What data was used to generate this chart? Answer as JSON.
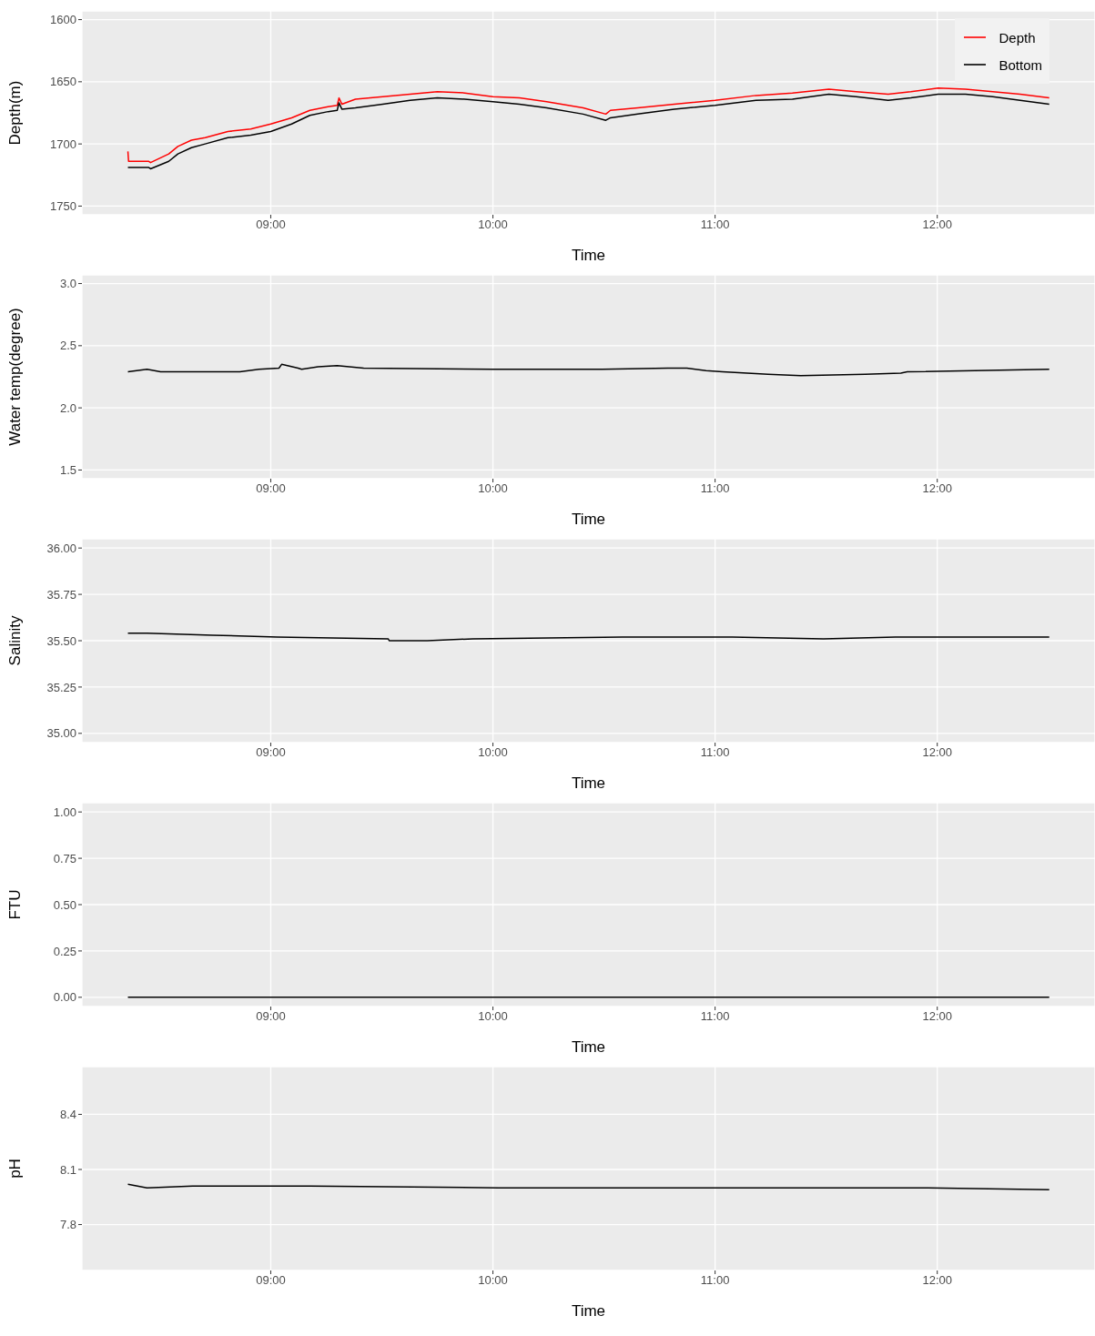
{
  "chart_data": [
    {
      "type": "line",
      "xlabel": "Time",
      "ylabel": "Depth(m)",
      "xlim": [
        8.15,
        12.71
      ],
      "ylim": [
        1757,
        1593
      ],
      "xticks": [
        {
          "value": 9,
          "label": "09:00"
        },
        {
          "value": 10,
          "label": "10:00"
        },
        {
          "value": 11,
          "label": "11:00"
        },
        {
          "value": 12,
          "label": "12:00"
        }
      ],
      "yticks": [
        1600,
        1650,
        1700,
        1750
      ],
      "grid": true,
      "legend": "top right",
      "line_style": "solid",
      "marker": "none",
      "x": [
        8.357,
        8.36,
        8.451,
        8.459,
        8.541,
        8.582,
        8.643,
        8.705,
        8.807,
        8.91,
        9.0,
        9.094,
        9.176,
        9.258,
        9.299,
        9.307,
        9.32,
        9.381,
        9.504,
        9.627,
        9.75,
        9.873,
        10.0,
        10.119,
        10.242,
        10.406,
        10.508,
        10.529,
        10.652,
        10.816,
        11.0,
        11.184,
        11.348,
        11.512,
        11.635,
        11.779,
        11.881,
        12.004,
        12.127,
        12.25,
        12.373,
        12.504
      ],
      "series": [
        {
          "name": "Depth",
          "color": "#ff0000",
          "values": [
            1706,
            1714,
            1714,
            1715,
            1708,
            1702,
            1697,
            1695,
            1690,
            1688,
            1684,
            1679,
            1673,
            1670,
            1669,
            1663,
            1668,
            1664,
            1662,
            1660,
            1658,
            1659,
            1662,
            1663,
            1666,
            1671,
            1676,
            1673,
            1671,
            1668,
            1665,
            1661,
            1659,
            1656,
            1658,
            1660,
            1658,
            1655,
            1656,
            1658,
            1660,
            1663
          ]
        },
        {
          "name": "Bottom",
          "color": "#000000",
          "values": [
            1719,
            1719,
            1719,
            1720,
            1714,
            1708,
            1703,
            1700,
            1695,
            1693,
            1690,
            1684,
            1677,
            1674,
            1673,
            1667,
            1672,
            1671,
            1668,
            1665,
            1663,
            1664,
            1666,
            1668,
            1671,
            1676,
            1681,
            1679,
            1676,
            1672,
            1669,
            1665,
            1664,
            1660,
            1662,
            1665,
            1663,
            1660,
            1660,
            1662,
            1665,
            1668
          ]
        }
      ]
    },
    {
      "type": "line",
      "xlabel": "Time",
      "ylabel": "Water temp(degree)",
      "xlim": [
        8.15,
        12.71
      ],
      "ylim": [
        1.43,
        3.07
      ],
      "xticks": [
        {
          "value": 9,
          "label": "09:00"
        },
        {
          "value": 10,
          "label": "10:00"
        },
        {
          "value": 11,
          "label": "11:00"
        },
        {
          "value": 12,
          "label": "12:00"
        }
      ],
      "yticks": [
        {
          "value": 1.5,
          "label": "1.5"
        },
        {
          "value": 2,
          "label": "2.0"
        },
        2.5,
        {
          "value": 3,
          "label": "3.0"
        }
      ],
      "grid": true,
      "line_style": "solid",
      "marker": "none",
      "x": [
        8.357,
        8.443,
        8.504,
        8.537,
        8.832,
        8.861,
        8.947,
        9.037,
        9.049,
        9.123,
        9.139,
        9.213,
        9.299,
        9.418,
        10.0,
        10.492,
        10.787,
        10.873,
        10.959,
        11.033,
        11.238,
        11.385,
        11.676,
        11.836,
        11.865,
        12.504
      ],
      "series": [
        {
          "color": "#000000",
          "values": [
            2.29,
            2.31,
            2.29,
            2.29,
            2.29,
            2.29,
            2.31,
            2.32,
            2.35,
            2.32,
            2.31,
            2.33,
            2.34,
            2.32,
            2.31,
            2.31,
            2.32,
            2.32,
            2.3,
            2.29,
            2.27,
            2.26,
            2.27,
            2.28,
            2.29,
            2.31
          ]
        }
      ]
    },
    {
      "type": "line",
      "xlabel": "Time",
      "ylabel": "Salinity",
      "xlim": [
        8.15,
        12.71
      ],
      "ylim": [
        34.95,
        36.05
      ],
      "xticks": [
        {
          "value": 9,
          "label": "09:00"
        },
        {
          "value": 10,
          "label": "10:00"
        },
        {
          "value": 11,
          "label": "11:00"
        },
        {
          "value": 12,
          "label": "12:00"
        }
      ],
      "yticks": [
        {
          "value": 35,
          "label": "35.00"
        },
        35.25,
        {
          "value": 35.5,
          "label": "35.50"
        },
        35.75,
        {
          "value": 36,
          "label": "36.00"
        }
      ],
      "grid": true,
      "line_style": "solid",
      "marker": "none",
      "x": [
        8.357,
        8.443,
        8.738,
        9.029,
        9.529,
        9.533,
        9.705,
        9.91,
        10.582,
        11.078,
        11.488,
        11.811,
        12.504
      ],
      "series": [
        {
          "color": "#000000",
          "values": [
            35.54,
            35.54,
            35.53,
            35.52,
            35.51,
            35.5,
            35.5,
            35.51,
            35.52,
            35.52,
            35.51,
            35.52,
            35.52
          ]
        }
      ]
    },
    {
      "type": "line",
      "xlabel": "Time",
      "ylabel": "FTU",
      "xlim": [
        8.15,
        12.71
      ],
      "ylim": [
        -0.05,
        1.05
      ],
      "xticks": [
        {
          "value": 9,
          "label": "09:00"
        },
        {
          "value": 10,
          "label": "10:00"
        },
        {
          "value": 11,
          "label": "11:00"
        },
        {
          "value": 12,
          "label": "12:00"
        }
      ],
      "yticks": [
        {
          "value": 0,
          "label": "0.00"
        },
        0.25,
        {
          "value": 0.5,
          "label": "0.50"
        },
        0.75,
        {
          "value": 1,
          "label": "1.00"
        }
      ],
      "grid": true,
      "line_style": "solid",
      "marker": "none",
      "x": [
        8.357,
        12.504
      ],
      "series": [
        {
          "color": "#000000",
          "values": [
            0,
            0
          ]
        }
      ]
    },
    {
      "type": "line",
      "xlabel": "Time",
      "ylabel": "pH",
      "xlim": [
        8.15,
        12.71
      ],
      "ylim": [
        7.55,
        8.66
      ],
      "xticks": [
        {
          "value": 9,
          "label": "09:00"
        },
        {
          "value": 10,
          "label": "10:00"
        },
        {
          "value": 11,
          "label": "11:00"
        },
        {
          "value": 12,
          "label": "12:00"
        }
      ],
      "yticks": [
        7.8,
        8.1,
        8.4
      ],
      "grid": true,
      "line_style": "solid",
      "marker": "none",
      "x": [
        8.357,
        8.443,
        8.648,
        9.176,
        10.025,
        11.078,
        11.959,
        12.504
      ],
      "series": [
        {
          "color": "#000000",
          "values": [
            8.02,
            8.0,
            8.01,
            8.01,
            8.0,
            8.0,
            8.0,
            7.99
          ]
        }
      ]
    }
  ]
}
